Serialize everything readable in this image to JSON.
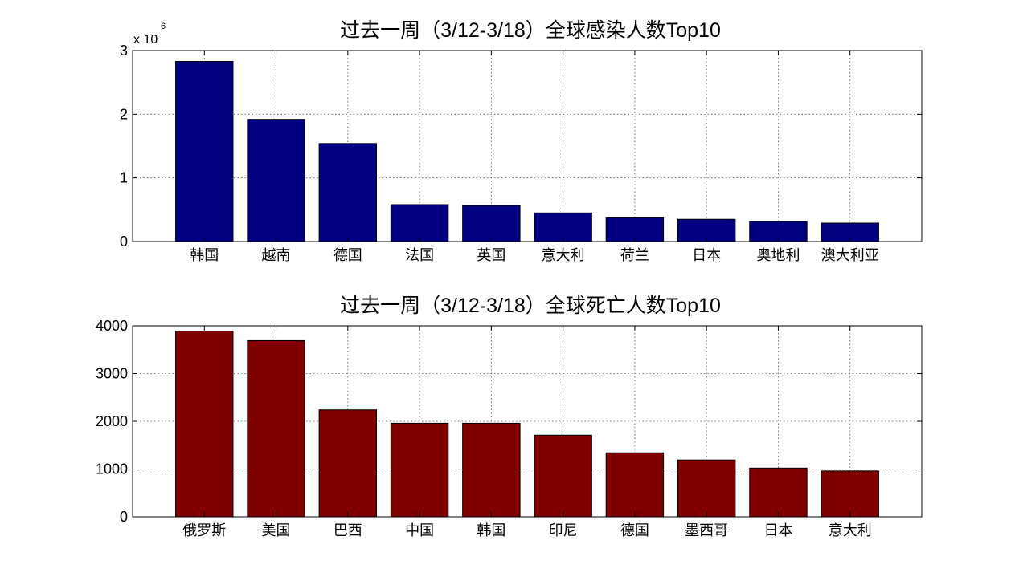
{
  "chart_data": [
    {
      "type": "bar",
      "title": "过去一周（3/12-3/18）全球感染人数Top10",
      "categories": [
        "韩国",
        "越南",
        "德国",
        "法国",
        "英国",
        "意大利",
        "荷兰",
        "日本",
        "奥地利",
        "澳大利亚"
      ],
      "values": [
        2830000,
        1920000,
        1540000,
        580000,
        565000,
        450000,
        375000,
        350000,
        315000,
        290000
      ],
      "ylim": [
        0,
        3000000
      ],
      "yticks": [
        0,
        1000000,
        2000000,
        3000000
      ],
      "ytick_labels": [
        "0",
        "1",
        "2",
        "3"
      ],
      "yaxis_multiplier": {
        "base": "x 10",
        "exponent": "6"
      },
      "xlabel": "",
      "ylabel": "",
      "bar_color": "#000080",
      "grid": true
    },
    {
      "type": "bar",
      "title": "过去一周（3/12-3/18）全球死亡人数Top10",
      "categories": [
        "俄罗斯",
        "美国",
        "巴西",
        "中国",
        "韩国",
        "印尼",
        "德国",
        "墨西哥",
        "日本",
        "意大利"
      ],
      "values": [
        3890,
        3690,
        2240,
        1960,
        1960,
        1710,
        1340,
        1190,
        1020,
        960
      ],
      "ylim": [
        0,
        4000
      ],
      "yticks": [
        0,
        1000,
        2000,
        3000,
        4000
      ],
      "ytick_labels": [
        "0",
        "1000",
        "2000",
        "3000",
        "4000"
      ],
      "xlabel": "",
      "ylabel": "",
      "bar_color": "#800000",
      "grid": true
    }
  ]
}
